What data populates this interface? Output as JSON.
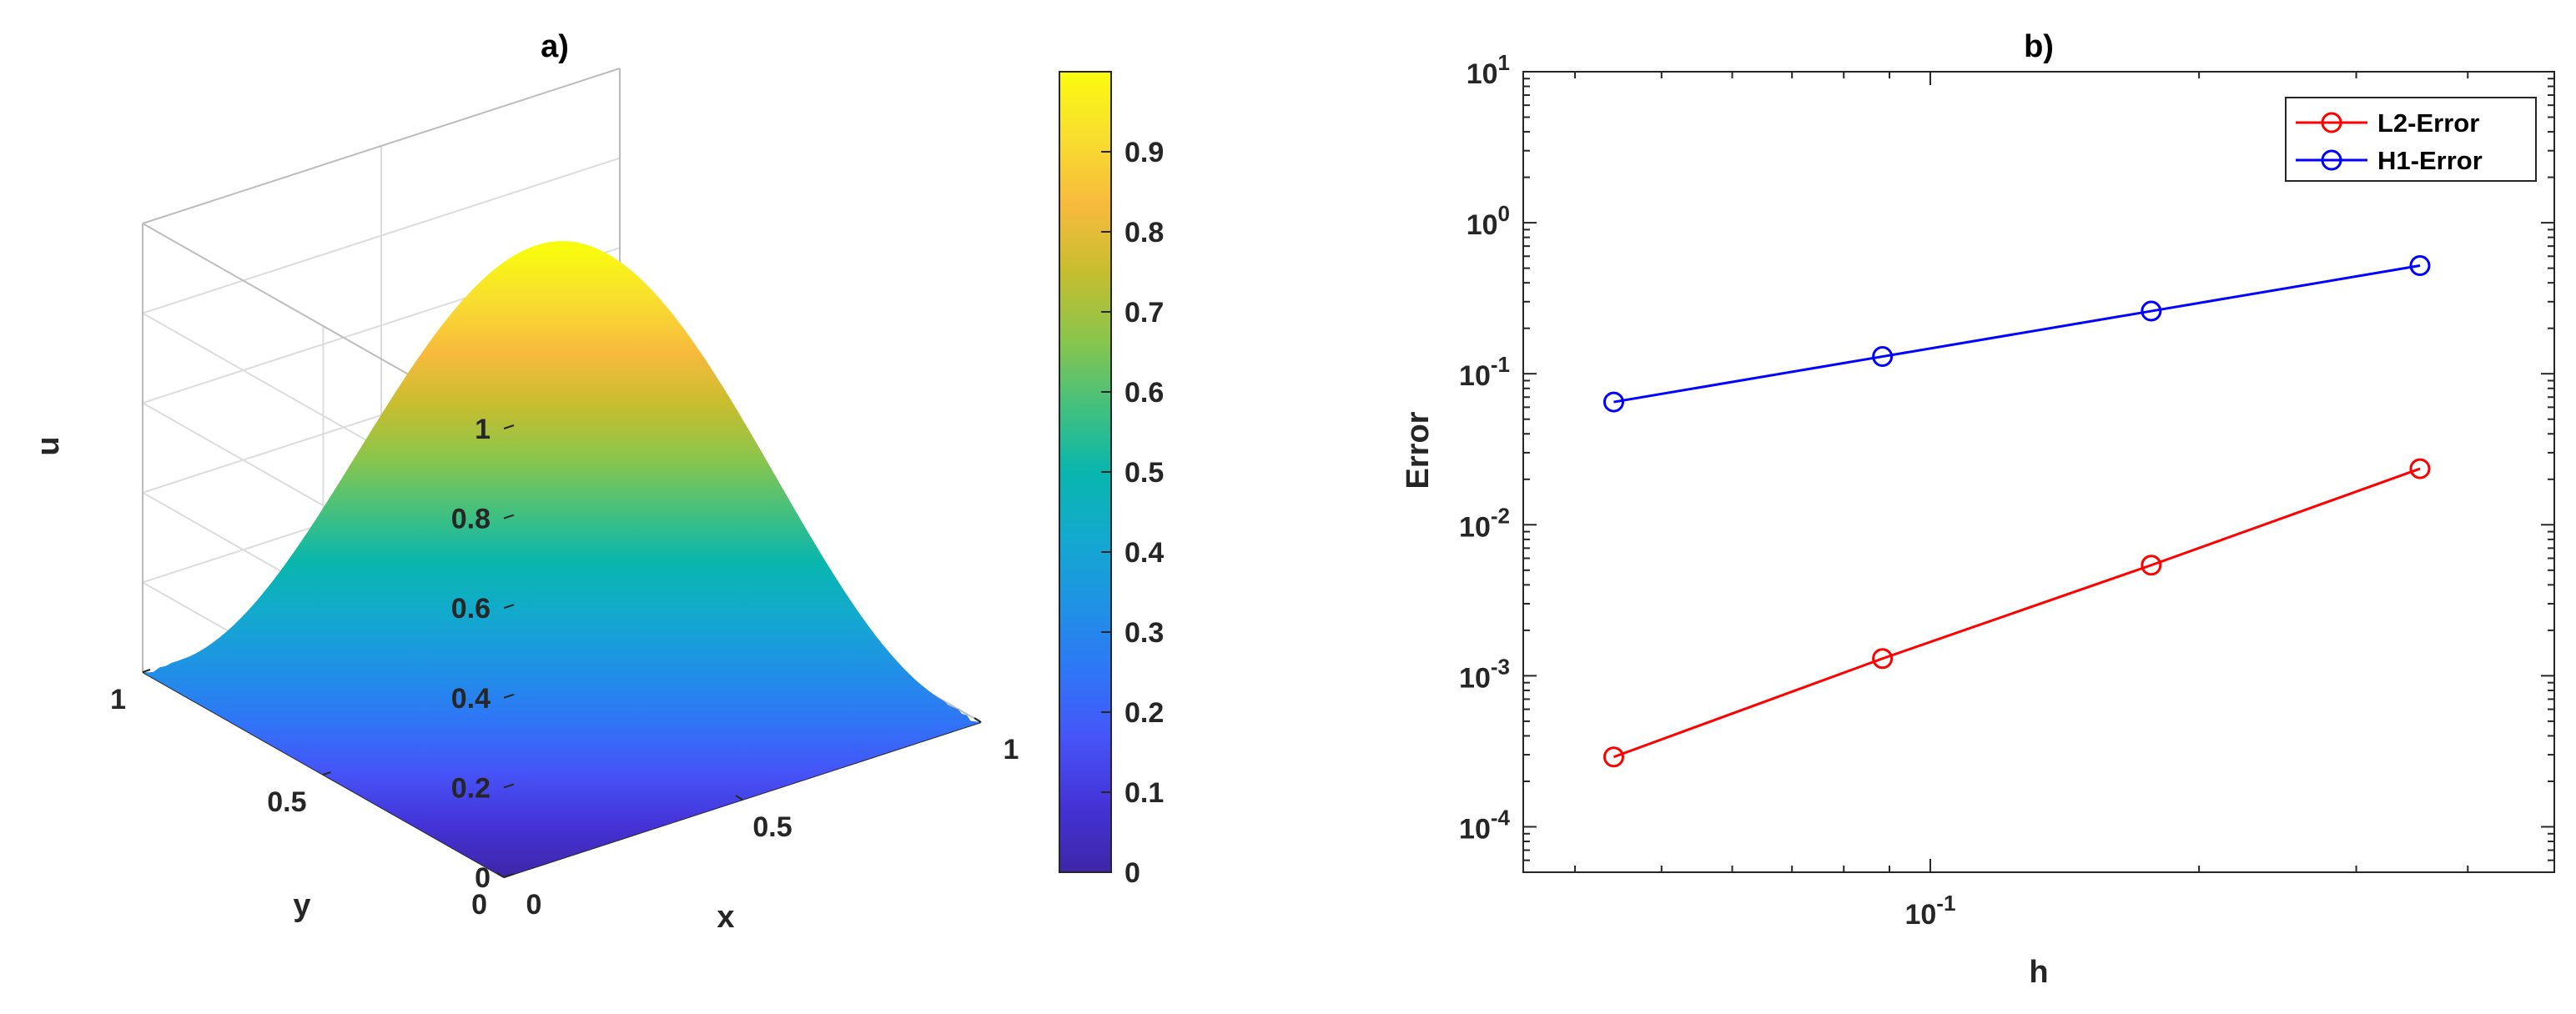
{
  "chart_data": [
    {
      "type": "surface",
      "title": "a)",
      "xlabel": "x",
      "ylabel": "y",
      "zlabel": "u",
      "xlim": [
        0,
        1
      ],
      "ylim": [
        0,
        1
      ],
      "zlim": [
        0,
        1
      ],
      "x_ticks": [
        "0",
        "0.5",
        "1"
      ],
      "y_ticks": [
        "0",
        "0.5",
        "1"
      ],
      "z_ticks": [
        "0",
        "0.2",
        "0.4",
        "0.6",
        "0.8",
        "1"
      ],
      "function": "u = sin(pi x) sin(pi y)",
      "peak": {
        "x": 0.5,
        "y": 0.5,
        "u": 1.0
      },
      "colormap": "parula",
      "colorbar": {
        "range": [
          0,
          1
        ],
        "ticks": [
          "0",
          "0.1",
          "0.2",
          "0.3",
          "0.4",
          "0.5",
          "0.6",
          "0.7",
          "0.8",
          "0.9"
        ],
        "stops": [
          "#3e26a8",
          "#4433d7",
          "#4654f8",
          "#2f76f7",
          "#1f92e5",
          "#13a9cf",
          "#08b6ad",
          "#45c07d",
          "#8bc54b",
          "#c7bd2f",
          "#f7ba3d",
          "#f8dd2f",
          "#f9fb0e"
        ]
      },
      "grid": true
    },
    {
      "type": "line",
      "title": "b)",
      "xlabel": "h",
      "ylabel": "Error",
      "xscale": "log",
      "yscale": "log",
      "xlim": [
        0.035,
        0.5
      ],
      "ylim": [
        5e-05,
        10
      ],
      "y_ticks": [
        {
          "value": 10,
          "mant": "10",
          "exp": "1"
        },
        {
          "value": 1,
          "mant": "10",
          "exp": "0"
        },
        {
          "value": 0.1,
          "mant": "10",
          "exp": "-1"
        },
        {
          "value": 0.01,
          "mant": "10",
          "exp": "-2"
        },
        {
          "value": 0.001,
          "mant": "10",
          "exp": "-3"
        },
        {
          "value": 0.0001,
          "mant": "10",
          "exp": "-4"
        }
      ],
      "x_ticks": [
        {
          "value": 0.1,
          "mant": "10",
          "exp": "-1"
        }
      ],
      "series": [
        {
          "name": "L2-Error",
          "color": "#ff0000",
          "x": [
            0.0442,
            0.0884,
            0.1768,
            0.3536
          ],
          "y": [
            0.00029,
            0.0013,
            0.0054,
            0.0235
          ]
        },
        {
          "name": "H1-Error",
          "color": "#0000ff",
          "x": [
            0.0442,
            0.0884,
            0.1768,
            0.3536
          ],
          "y": [
            0.065,
            0.13,
            0.26,
            0.52
          ]
        }
      ],
      "legend": "top-right",
      "grid": false
    }
  ]
}
